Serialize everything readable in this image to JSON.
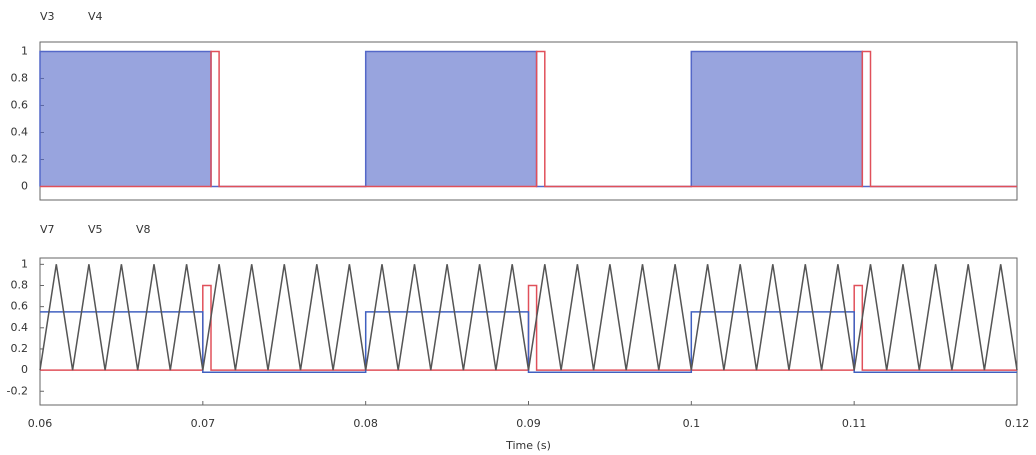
{
  "chart_data": [
    {
      "type": "line",
      "xlim": [
        0.06,
        0.12
      ],
      "ylim": [
        -0.1,
        1.07
      ],
      "yticks": [
        0,
        0.2,
        0.4,
        0.6,
        0.8,
        1
      ],
      "series": [
        {
          "name": "V3",
          "color": "#5468c8",
          "fill": true,
          "x": [
            0.06,
            0.06,
            0.0705,
            0.0705,
            0.08,
            0.08,
            0.0905,
            0.0905,
            0.1,
            0.1,
            0.1105,
            0.1105,
            0.12
          ],
          "values": [
            0,
            1,
            1,
            0,
            0,
            1,
            1,
            0,
            0,
            1,
            1,
            0,
            0
          ]
        },
        {
          "name": "V4",
          "color": "#e0505a",
          "fill": false,
          "x": [
            0.06,
            0.0705,
            0.0705,
            0.071,
            0.071,
            0.0905,
            0.0905,
            0.091,
            0.091,
            0.1105,
            0.1105,
            0.111,
            0.111,
            0.12
          ],
          "values": [
            0,
            0,
            1,
            1,
            0,
            0,
            1,
            1,
            0,
            0,
            1,
            1,
            0,
            0
          ]
        }
      ]
    },
    {
      "type": "line",
      "xlim": [
        0.06,
        0.12
      ],
      "ylim": [
        -0.33,
        1.06
      ],
      "yticks": [
        -0.2,
        0,
        0.2,
        0.4,
        0.6,
        0.8,
        1
      ],
      "xticks": [
        0.06,
        0.07,
        0.08,
        0.09,
        0.1,
        0.11,
        0.12
      ],
      "xlabel": "Time (s)",
      "series": [
        {
          "name": "V7",
          "color": "#e0505a",
          "fill": false,
          "x": [
            0.06,
            0.07,
            0.07,
            0.0705,
            0.0705,
            0.09,
            0.09,
            0.0905,
            0.0905,
            0.11,
            0.11,
            0.1105,
            0.1105,
            0.12
          ],
          "values": [
            0,
            0,
            0.8,
            0.8,
            0,
            0,
            0.8,
            0.8,
            0,
            0,
            0.8,
            0.8,
            0,
            0
          ]
        },
        {
          "name": "V5",
          "color": "#4060c0",
          "fill": false,
          "x": [
            0.06,
            0.07,
            0.07,
            0.08,
            0.08,
            0.09,
            0.09,
            0.1,
            0.1,
            0.11,
            0.11,
            0.12
          ],
          "values": [
            0.55,
            0.55,
            -0.02,
            -0.02,
            0.55,
            0.55,
            -0.02,
            -0.02,
            0.55,
            0.55,
            -0.02,
            -0.02
          ]
        },
        {
          "name": "V8",
          "color": "#555555",
          "fill": false,
          "x": [
            0.06,
            0.061,
            0.062,
            0.063,
            0.064,
            0.065,
            0.066,
            0.067,
            0.068,
            0.069,
            0.07,
            0.071,
            0.072,
            0.073,
            0.074,
            0.075,
            0.076,
            0.077,
            0.078,
            0.079,
            0.08,
            0.081,
            0.082,
            0.083,
            0.084,
            0.085,
            0.086,
            0.087,
            0.088,
            0.089,
            0.09,
            0.091,
            0.092,
            0.093,
            0.094,
            0.095,
            0.096,
            0.097,
            0.098,
            0.099,
            0.1,
            0.101,
            0.102,
            0.103,
            0.104,
            0.105,
            0.106,
            0.107,
            0.108,
            0.109,
            0.11,
            0.111,
            0.112,
            0.113,
            0.114,
            0.115,
            0.116,
            0.117,
            0.118,
            0.119,
            0.12
          ],
          "values": [
            0,
            1,
            0,
            1,
            0,
            1,
            0,
            1,
            0,
            1,
            0,
            1,
            0,
            1,
            0,
            1,
            0,
            1,
            0,
            1,
            0,
            1,
            0,
            1,
            0,
            1,
            0,
            1,
            0,
            1,
            0,
            1,
            0,
            1,
            0,
            1,
            0,
            1,
            0,
            1,
            0,
            1,
            0,
            1,
            0,
            1,
            0,
            1,
            0,
            1,
            0,
            1,
            0,
            1,
            0,
            1,
            0,
            1,
            0,
            1,
            0
          ]
        }
      ]
    }
  ]
}
